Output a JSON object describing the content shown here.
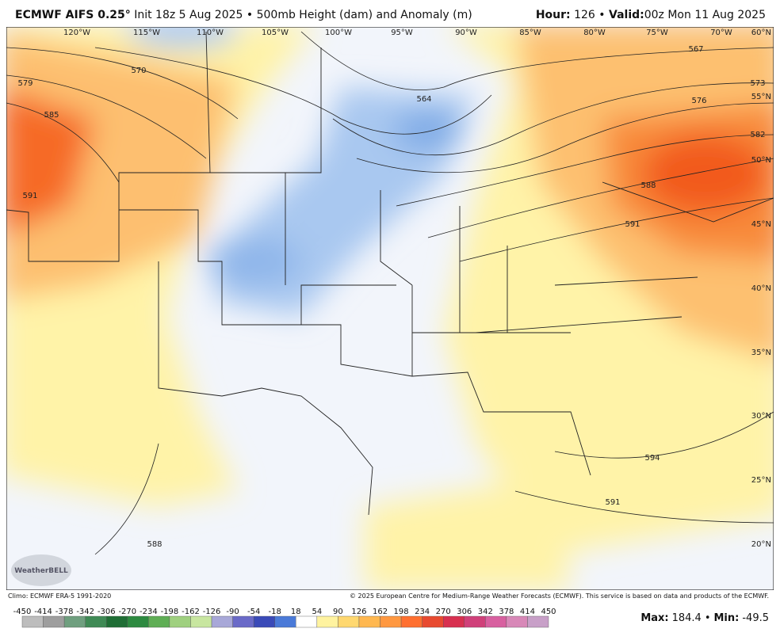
{
  "header": {
    "title_bold": "ECMWF AIFS 0.25°",
    "title_rest": "Init 18z 5 Aug 2025 • 500mb Height (dam) and Anomaly (m)",
    "hour_label": "Hour:",
    "hour": 126,
    "separator": "•",
    "valid_label": "Valid:",
    "valid": "00z Mon 11 Aug 2025"
  },
  "map": {
    "lon_labels": [
      "120°W",
      "115°W",
      "110°W",
      "105°W",
      "100°W",
      "95°W",
      "90°W",
      "85°W",
      "80°W",
      "75°W",
      "70°W"
    ],
    "lat_labels": [
      "60°N",
      "55°N",
      "50°N",
      "45°N",
      "40°N",
      "35°N",
      "30°N",
      "25°N",
      "20°N"
    ],
    "contour_labels": [
      579,
      585,
      570,
      564,
      567,
      573,
      576,
      582,
      588,
      591,
      594,
      591,
      588,
      591
    ],
    "logo": "WeatherBELL"
  },
  "footer": {
    "climo": "Climo: ECMWF ERA-5 1991-2020",
    "copyright": "© 2025 European Centre for Medium-Range Weather Forecasts (ECMWF). This service is based on data and products of the ECMWF."
  },
  "colorbar": {
    "ticks": [
      -450,
      -414,
      -378,
      -342,
      -306,
      -270,
      -234,
      -198,
      -162,
      -126,
      -90,
      -54,
      -18,
      18,
      54,
      90,
      126,
      162,
      198,
      234,
      270,
      306,
      342,
      378,
      414,
      450
    ],
    "colors": [
      "#bdbdbd",
      "#9e9e9e",
      "#6f9f7f",
      "#3f8a55",
      "#1f6e35",
      "#2d8a40",
      "#5fae55",
      "#9fd07f",
      "#c8e6a0",
      "#a8a8d8",
      "#6a6ac8",
      "#3a4ab8",
      "#4a7ad8",
      "#ffffff",
      "#fff3a0",
      "#ffd870",
      "#ffb850",
      "#ff9840",
      "#ff7030",
      "#e84a30",
      "#d83050",
      "#d0407a",
      "#d860a0",
      "#d888b8",
      "#c8a0c8"
    ]
  },
  "stats": {
    "max_label": "Max:",
    "max": 184.4,
    "separator": "•",
    "min_label": "Min:",
    "min": -49.5
  }
}
